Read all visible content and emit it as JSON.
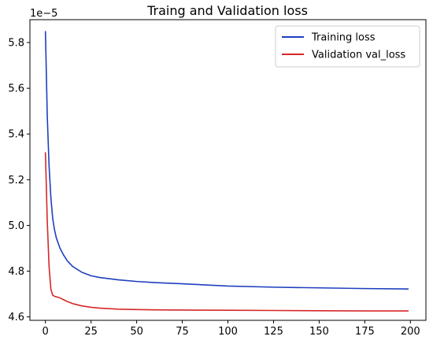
{
  "chart_data": {
    "type": "line",
    "title": "Traing and Validation loss",
    "xlabel": "",
    "ylabel": "",
    "y_offset_label": "1e−5",
    "xlim": [
      -8.5,
      208.5
    ],
    "ylim": [
      4.585,
      5.9
    ],
    "x_ticks": [
      0,
      25,
      50,
      75,
      100,
      125,
      150,
      175,
      200
    ],
    "x_tick_labels": [
      "0",
      "25",
      "50",
      "75",
      "100",
      "125",
      "150",
      "175",
      "200"
    ],
    "y_ticks": [
      4.6,
      4.8,
      5.0,
      5.2,
      5.4,
      5.6,
      5.8
    ],
    "y_tick_labels": [
      "4.6",
      "4.8",
      "5.0",
      "5.2",
      "5.4",
      "5.6",
      "5.8"
    ],
    "grid": false,
    "legend_position": "top-right",
    "series": [
      {
        "name": "Training loss",
        "color": "#1f3fbf",
        "x": [
          0,
          1,
          2,
          3,
          4,
          5,
          6,
          8,
          10,
          12,
          15,
          20,
          25,
          30,
          40,
          50,
          60,
          75,
          100,
          125,
          150,
          175,
          199
        ],
        "values": [
          5.85,
          5.48,
          5.26,
          5.12,
          5.03,
          4.98,
          4.945,
          4.9,
          4.87,
          4.845,
          4.82,
          4.795,
          4.78,
          4.772,
          4.762,
          4.755,
          4.75,
          4.745,
          4.735,
          4.73,
          4.727,
          4.724,
          4.722
        ]
      },
      {
        "name": "Validation val_loss",
        "color": "#d62728",
        "x": [
          0,
          1,
          2,
          3,
          4,
          5,
          6,
          8,
          10,
          12,
          15,
          20,
          25,
          30,
          40,
          50,
          60,
          75,
          100,
          125,
          150,
          175,
          199
        ],
        "values": [
          5.32,
          5.02,
          4.82,
          4.72,
          4.695,
          4.69,
          4.688,
          4.683,
          4.675,
          4.667,
          4.658,
          4.648,
          4.642,
          4.638,
          4.634,
          4.632,
          4.631,
          4.63,
          4.629,
          4.628,
          4.627,
          4.626,
          4.626
        ]
      }
    ]
  }
}
